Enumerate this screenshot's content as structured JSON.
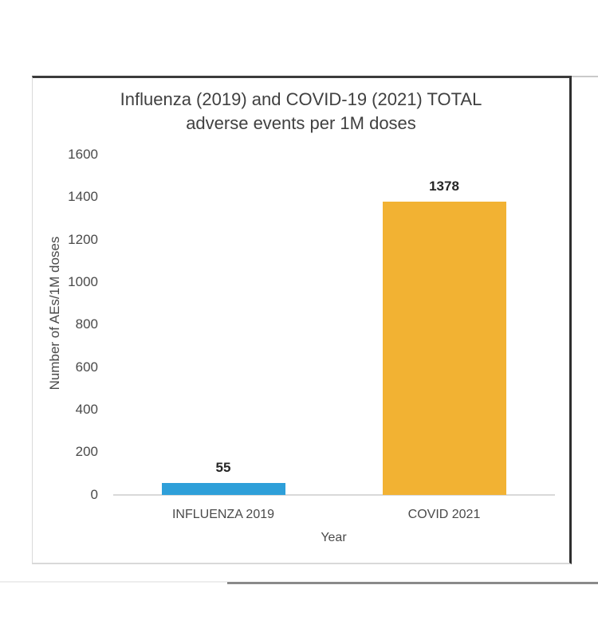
{
  "chart_data": {
    "type": "bar",
    "title": "Influenza (2019) and COVID-19 (2021) TOTAL adverse events per 1M doses",
    "title_lines": [
      "Influenza (2019) and COVID-19 (2021) TOTAL",
      "adverse events per 1M doses"
    ],
    "categories": [
      "INFLUENZA 2019",
      "COVID 2021"
    ],
    "values": [
      55,
      1378
    ],
    "data_labels": [
      "55",
      "1378"
    ],
    "bar_colors": [
      "#2E9FD9",
      "#F2B233"
    ],
    "xlabel": "Year",
    "ylabel": "Number of AEs/1M doses",
    "ylim": [
      0,
      1600
    ],
    "yticks": [
      0,
      200,
      400,
      600,
      800,
      1000,
      1200,
      1400,
      1600
    ],
    "grid": false,
    "legend": "none"
  },
  "style_colors": {
    "axis_line": "#d9d9d9",
    "tick_text": "#4a4a4a",
    "title_text": "#404040",
    "data_label_text": "#262626",
    "frame_top": "#3b3b3b",
    "frame_right": "#2e2e2e",
    "frame_light": "#d9d9d9",
    "bottom_rule_dark": "#8a8a8a",
    "bottom_rule_light": "#ededed",
    "background": "#ffffff"
  }
}
